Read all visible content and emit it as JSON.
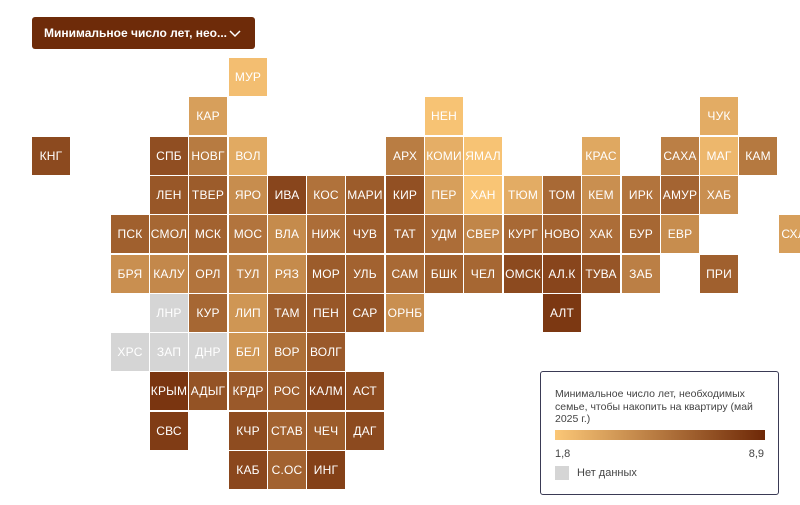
{
  "dropdown": {
    "label": "Минимальное число лет, нео...",
    "icon": "chevron-down-icon"
  },
  "legend": {
    "title": "Минимальное число лет, необходимых семье, чтобы накопить на квартиру (май 2025 г.)",
    "min_label": "1,8",
    "max_label": "8,9",
    "min": 1.8,
    "max": 8.9,
    "gradient_from": "#fbc777",
    "gradient_to": "#6e2807",
    "no_data_label": "Нет данных",
    "no_data_color": "#d5d5d5"
  },
  "regions": [
    {
      "label": "МУР",
      "col": 5,
      "row": 0,
      "value": 2.2
    },
    {
      "label": "КАР",
      "col": 4,
      "row": 1,
      "value": 3.6
    },
    {
      "label": "НЕН",
      "col": 10,
      "row": 1,
      "value": 2.0
    },
    {
      "label": "ЧУК",
      "col": 17,
      "row": 1,
      "value": 3.0
    },
    {
      "label": "КНГ",
      "col": 0,
      "row": 2,
      "value": 7.4
    },
    {
      "label": "СПБ",
      "col": 3,
      "row": 2,
      "value": 7.2
    },
    {
      "label": "НОВГ",
      "col": 4,
      "row": 2,
      "value": 5.2
    },
    {
      "label": "ВОЛ",
      "col": 5,
      "row": 2,
      "value": 3.1
    },
    {
      "label": "АРХ",
      "col": 9,
      "row": 2,
      "value": 5.1
    },
    {
      "label": "КОМИ",
      "col": 10,
      "row": 2,
      "value": 2.9
    },
    {
      "label": "ЯМАЛ",
      "col": 11,
      "row": 2,
      "value": 2.0
    },
    {
      "label": "КРАС",
      "col": 14,
      "row": 2,
      "value": 3.2
    },
    {
      "label": "САХА",
      "col": 16,
      "row": 2,
      "value": 5.0
    },
    {
      "label": "МАГ",
      "col": 17,
      "row": 2,
      "value": 2.5
    },
    {
      "label": "КАМ",
      "col": 18,
      "row": 2,
      "value": 5.3
    },
    {
      "label": "ЛЕН",
      "col": 3,
      "row": 3,
      "value": 6.8
    },
    {
      "label": "ТВЕР",
      "col": 4,
      "row": 3,
      "value": 6.6
    },
    {
      "label": "ЯРО",
      "col": 5,
      "row": 3,
      "value": 4.4
    },
    {
      "label": "ИВА",
      "col": 6,
      "row": 3,
      "value": 7.6
    },
    {
      "label": "КОС",
      "col": 7,
      "row": 3,
      "value": 5.6
    },
    {
      "label": "МАРИ",
      "col": 8,
      "row": 3,
      "value": 6.6
    },
    {
      "label": "КИР",
      "col": 9,
      "row": 3,
      "value": 7.1
    },
    {
      "label": "ПЕР",
      "col": 10,
      "row": 3,
      "value": 3.6
    },
    {
      "label": "ХАН",
      "col": 11,
      "row": 3,
      "value": 1.9
    },
    {
      "label": "ТЮМ",
      "col": 12,
      "row": 3,
      "value": 3.0
    },
    {
      "label": "ТОМ",
      "col": 13,
      "row": 3,
      "value": 6.0
    },
    {
      "label": "КЕМ",
      "col": 14,
      "row": 3,
      "value": 4.3
    },
    {
      "label": "ИРК",
      "col": 15,
      "row": 3,
      "value": 5.5
    },
    {
      "label": "АМУР",
      "col": 16,
      "row": 3,
      "value": 6.2
    },
    {
      "label": "ХАБ",
      "col": 17,
      "row": 3,
      "value": 4.3
    },
    {
      "label": "ПСК",
      "col": 2,
      "row": 4,
      "value": 6.4
    },
    {
      "label": "СМОЛ",
      "col": 3,
      "row": 4,
      "value": 6.1
    },
    {
      "label": "МСК",
      "col": 4,
      "row": 4,
      "value": 6.3
    },
    {
      "label": "МОС",
      "col": 5,
      "row": 4,
      "value": 5.5
    },
    {
      "label": "ВЛА",
      "col": 6,
      "row": 4,
      "value": 4.5
    },
    {
      "label": "НИЖ",
      "col": 7,
      "row": 4,
      "value": 5.8
    },
    {
      "label": "ЧУВ",
      "col": 8,
      "row": 4,
      "value": 6.5
    },
    {
      "label": "ТАТ",
      "col": 9,
      "row": 4,
      "value": 6.5
    },
    {
      "label": "УДМ",
      "col": 10,
      "row": 4,
      "value": 5.8
    },
    {
      "label": "СВЕР",
      "col": 11,
      "row": 4,
      "value": 4.7
    },
    {
      "label": "КУРГ",
      "col": 12,
      "row": 4,
      "value": 6.0
    },
    {
      "label": "НОВО",
      "col": 13,
      "row": 4,
      "value": 6.3
    },
    {
      "label": "ХАК",
      "col": 14,
      "row": 4,
      "value": 5.8
    },
    {
      "label": "БУР",
      "col": 15,
      "row": 4,
      "value": 6.1
    },
    {
      "label": "ЕВР",
      "col": 16,
      "row": 4,
      "value": 4.4
    },
    {
      "label": "СХЛН",
      "col": 19,
      "row": 4,
      "value": 3.6
    },
    {
      "label": "БРЯ",
      "col": 2,
      "row": 5,
      "value": 4.3
    },
    {
      "label": "КАЛУ",
      "col": 3,
      "row": 5,
      "value": 4.6
    },
    {
      "label": "ОРЛ",
      "col": 4,
      "row": 5,
      "value": 5.5
    },
    {
      "label": "ТУЛ",
      "col": 5,
      "row": 5,
      "value": 4.8
    },
    {
      "label": "РЯЗ",
      "col": 6,
      "row": 5,
      "value": 4.5
    },
    {
      "label": "МОР",
      "col": 7,
      "row": 5,
      "value": 6.6
    },
    {
      "label": "УЛЬ",
      "col": 8,
      "row": 5,
      "value": 6.3
    },
    {
      "label": "САМ",
      "col": 9,
      "row": 5,
      "value": 6.0
    },
    {
      "label": "БШК",
      "col": 10,
      "row": 5,
      "value": 6.4
    },
    {
      "label": "ЧЕЛ",
      "col": 11,
      "row": 5,
      "value": 6.1
    },
    {
      "label": "ОМСК",
      "col": 12,
      "row": 5,
      "value": 7.4
    },
    {
      "label": "АЛ.К",
      "col": 13,
      "row": 5,
      "value": 7.6
    },
    {
      "label": "ТУВА",
      "col": 14,
      "row": 5,
      "value": 6.9
    },
    {
      "label": "ЗАБ",
      "col": 15,
      "row": 5,
      "value": 5.0
    },
    {
      "label": "ПРИ",
      "col": 17,
      "row": 5,
      "value": 6.4
    },
    {
      "label": "ЛНР",
      "col": 3,
      "row": 6,
      "value": null
    },
    {
      "label": "КУР",
      "col": 4,
      "row": 6,
      "value": 6.1
    },
    {
      "label": "ЛИП",
      "col": 5,
      "row": 6,
      "value": 4.0
    },
    {
      "label": "ТАМ",
      "col": 6,
      "row": 6,
      "value": 6.5
    },
    {
      "label": "ПЕН",
      "col": 7,
      "row": 6,
      "value": 6.8
    },
    {
      "label": "САР",
      "col": 8,
      "row": 6,
      "value": 7.0
    },
    {
      "label": "ОРНБ",
      "col": 9,
      "row": 6,
      "value": 4.3
    },
    {
      "label": "АЛТ",
      "col": 13,
      "row": 6,
      "value": 8.2
    },
    {
      "label": "ХРС",
      "col": 2,
      "row": 7,
      "value": null
    },
    {
      "label": "ЗАП",
      "col": 3,
      "row": 7,
      "value": null
    },
    {
      "label": "ДНР",
      "col": 4,
      "row": 7,
      "value": null
    },
    {
      "label": "БЕЛ",
      "col": 5,
      "row": 7,
      "value": 4.0
    },
    {
      "label": "ВОР",
      "col": 6,
      "row": 7,
      "value": 5.7
    },
    {
      "label": "ВОЛГ",
      "col": 7,
      "row": 7,
      "value": 6.7
    },
    {
      "label": "КРЫМ",
      "col": 3,
      "row": 8,
      "value": 8.3
    },
    {
      "label": "АДЫГ",
      "col": 4,
      "row": 8,
      "value": 7.0
    },
    {
      "label": "КРДР",
      "col": 5,
      "row": 8,
      "value": 6.7
    },
    {
      "label": "РОС",
      "col": 6,
      "row": 8,
      "value": 6.5
    },
    {
      "label": "КАЛМ",
      "col": 7,
      "row": 8,
      "value": 7.6
    },
    {
      "label": "АСТ",
      "col": 8,
      "row": 8,
      "value": 7.3
    },
    {
      "label": "СВС",
      "col": 3,
      "row": 9,
      "value": 8.0
    },
    {
      "label": "КЧР",
      "col": 5,
      "row": 9,
      "value": 7.3
    },
    {
      "label": "СТАВ",
      "col": 6,
      "row": 9,
      "value": 6.3
    },
    {
      "label": "ЧЕЧ",
      "col": 7,
      "row": 9,
      "value": 6.6
    },
    {
      "label": "ДАГ",
      "col": 8,
      "row": 9,
      "value": 7.4
    },
    {
      "label": "КАБ",
      "col": 5,
      "row": 10,
      "value": 7.5
    },
    {
      "label": "С.ОС",
      "col": 6,
      "row": 10,
      "value": 6.3
    },
    {
      "label": "ИНГ",
      "col": 7,
      "row": 10,
      "value": 7.8
    }
  ]
}
